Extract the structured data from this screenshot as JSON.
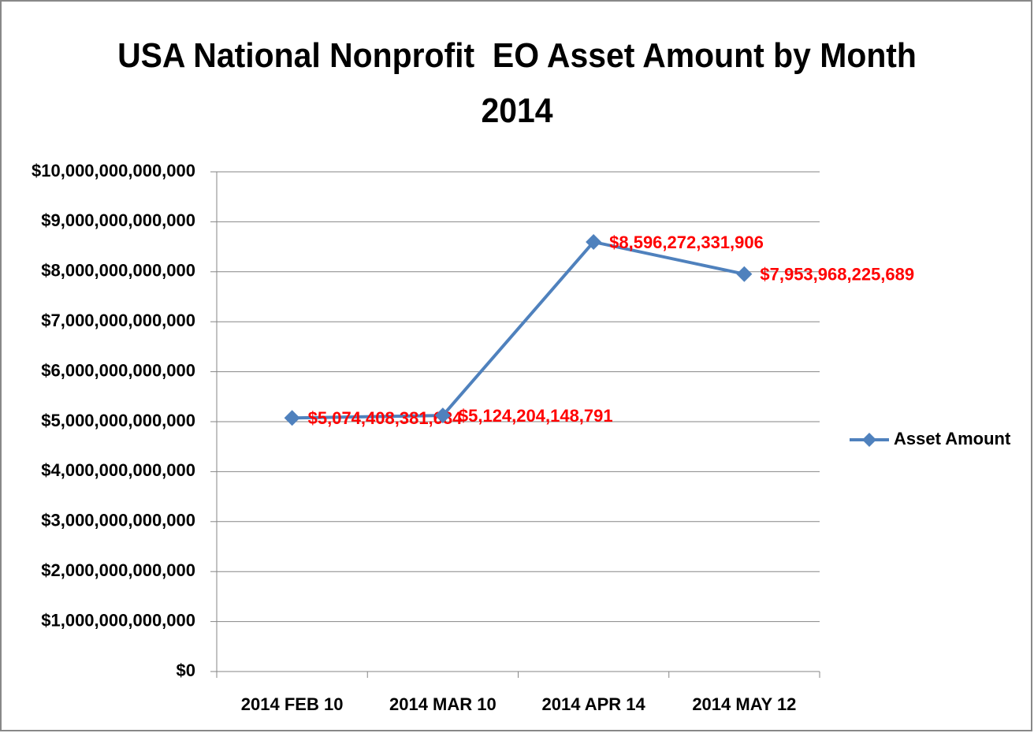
{
  "chart_data": {
    "type": "line",
    "title": "USA National Nonprofit  EO Asset Amount by Month 2014",
    "categories": [
      "2014 FEB 10",
      "2014 MAR 10",
      "2014 APR 14",
      "2014 MAY 12"
    ],
    "series": [
      {
        "name": "Asset Amount",
        "color": "#4f81bd",
        "values": [
          5074408381684,
          5124204148791,
          8596272331906,
          7953968225689
        ],
        "value_labels": [
          "$5,074,408,381,684",
          "$5,124,204,148,791",
          "$8,596,272,331,906",
          "$7,953,968,225,689"
        ],
        "label_color": "#ff0000"
      }
    ],
    "ylim": [
      0,
      10000000000000
    ],
    "yticks": [
      {
        "value": 0,
        "label": "$0"
      },
      {
        "value": 1000000000000,
        "label": "$1,000,000,000,000"
      },
      {
        "value": 2000000000000,
        "label": "$2,000,000,000,000"
      },
      {
        "value": 3000000000000,
        "label": "$3,000,000,000,000"
      },
      {
        "value": 4000000000000,
        "label": "$4,000,000,000,000"
      },
      {
        "value": 5000000000000,
        "label": "$5,000,000,000,000"
      },
      {
        "value": 6000000000000,
        "label": "$6,000,000,000,000"
      },
      {
        "value": 7000000000000,
        "label": "$7,000,000,000,000"
      },
      {
        "value": 8000000000000,
        "label": "$8,000,000,000,000"
      },
      {
        "value": 9000000000000,
        "label": "$9,000,000,000,000"
      },
      {
        "value": 10000000000000,
        "label": "$10,000,000,000,000"
      }
    ],
    "grid": true,
    "legend": "right"
  }
}
